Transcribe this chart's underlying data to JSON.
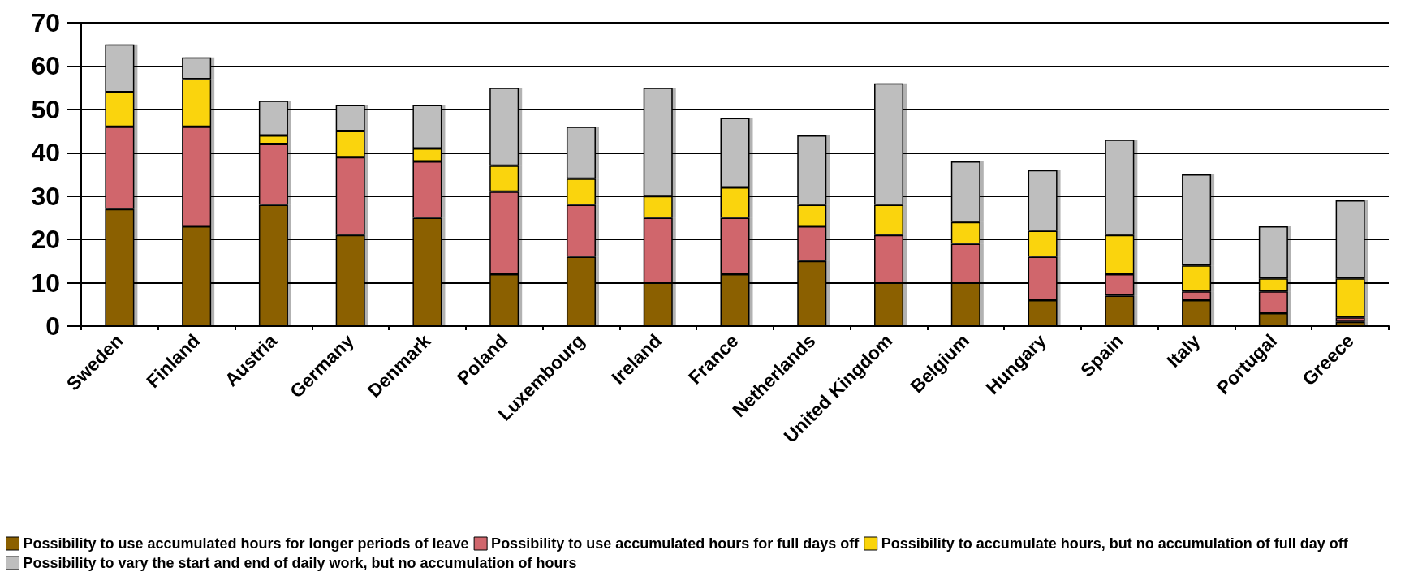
{
  "chart_data": {
    "type": "bar",
    "stacked": true,
    "categories": [
      "Sweden",
      "Finland",
      "Austria",
      "Germany",
      "Denmark",
      "Poland",
      "Luxembourg",
      "Ireland",
      "France",
      "Netherlands",
      "United Kingdom",
      "Belgium",
      "Hungary",
      "Spain",
      "Italy",
      "Portugal",
      "Greece"
    ],
    "series": [
      {
        "name": "Possibility to use accumulated hours for longer periods of leave",
        "color": "#8b6000",
        "values": [
          27,
          23,
          28,
          21,
          25,
          12,
          16,
          10,
          12,
          15,
          10,
          10,
          6,
          7,
          6,
          3,
          1
        ]
      },
      {
        "name": "Possibility to use accumulated hours for full days off",
        "color": "#d0666c",
        "values": [
          19,
          23,
          14,
          18,
          13,
          19,
          12,
          15,
          13,
          8,
          11,
          9,
          10,
          5,
          2,
          5,
          1
        ]
      },
      {
        "name": "Possibility to accumulate hours, but no accumulation of full day off",
        "color": "#fad40a",
        "values": [
          8,
          11,
          2,
          6,
          3,
          6,
          6,
          5,
          7,
          5,
          7,
          5,
          6,
          9,
          6,
          3,
          9
        ]
      },
      {
        "name": "Possibility to vary the start and end of daily work, but no accumulation of hours",
        "color": "#bebebe",
        "values": [
          11,
          5,
          8,
          6,
          10,
          18,
          12,
          25,
          16,
          16,
          28,
          14,
          14,
          22,
          21,
          12,
          18
        ]
      }
    ],
    "ylim": [
      0,
      70
    ],
    "yticks": [
      0,
      10,
      20,
      30,
      40,
      50,
      60,
      70
    ],
    "grid": "y",
    "legend": "bottom"
  }
}
